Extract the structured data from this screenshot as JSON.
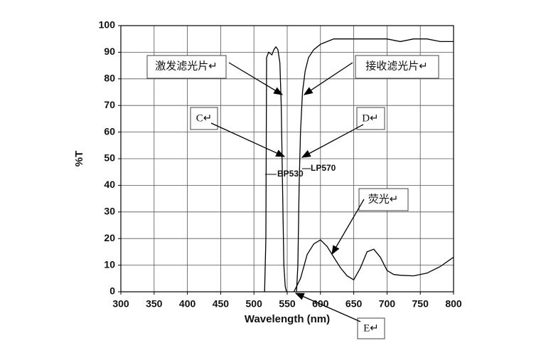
{
  "chart_data": {
    "type": "line",
    "x_label": "Wavelength (nm)",
    "y_label": "%T",
    "xlim": [
      300,
      800
    ],
    "ylim": [
      0,
      100
    ],
    "xticks": [
      300,
      350,
      400,
      450,
      500,
      550,
      600,
      650,
      700,
      750,
      800
    ],
    "yticks": [
      0,
      10,
      20,
      30,
      40,
      50,
      60,
      70,
      80,
      90,
      100
    ],
    "grid": true,
    "series": [
      {
        "name": "BP530",
        "color": "#000000",
        "x": [
          516,
          518,
          519,
          522,
          527,
          530,
          533,
          536,
          539,
          541,
          543,
          545,
          547,
          549
        ],
        "values": [
          0,
          20,
          88,
          90,
          89,
          91,
          92,
          91,
          86,
          70,
          40,
          10,
          2,
          0
        ]
      },
      {
        "name": "LP570",
        "color": "#000000",
        "x": [
          564,
          566,
          568,
          570,
          573,
          577,
          582,
          590,
          600,
          610,
          620,
          640,
          660,
          680,
          700,
          720,
          740,
          760,
          780,
          800
        ],
        "values": [
          0,
          10,
          40,
          60,
          75,
          83,
          88,
          91,
          93,
          94,
          95,
          95,
          95,
          95,
          95,
          94,
          95,
          95,
          94,
          94
        ]
      },
      {
        "color": "#000000",
        "x": [
          560,
          570,
          580,
          590,
          600,
          610,
          620,
          630,
          640,
          650,
          660,
          670,
          680,
          690,
          700,
          710,
          720,
          740,
          760,
          780,
          800
        ],
        "values": [
          0,
          5,
          14,
          18,
          19.5,
          17,
          13,
          9,
          6,
          4.5,
          9,
          15,
          16,
          13,
          8,
          6.5,
          6.2,
          6,
          7,
          9.5,
          13
        ]
      }
    ],
    "annotations": [
      "激发滤光片↵",
      "接收滤光片↵",
      "C↵",
      "D↵",
      "荧光↵",
      "E↵"
    ]
  }
}
